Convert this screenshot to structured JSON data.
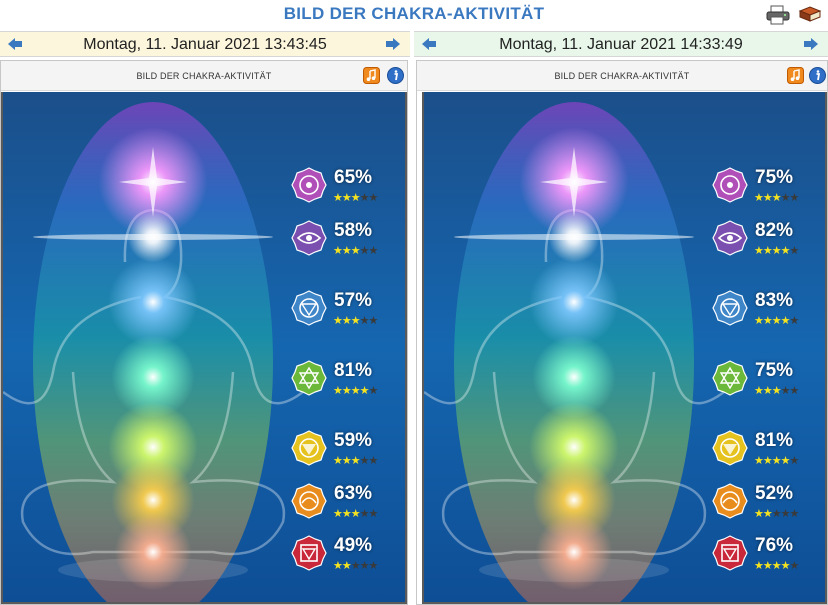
{
  "page": {
    "title": "BILD DER CHAKRA-AKTIVITÄT"
  },
  "icons": {
    "print": "printer-icon",
    "book": "book-icon",
    "prev": "arrow-left-icon",
    "next": "arrow-right-icon",
    "music": "music-note-icon",
    "info": "info-icon"
  },
  "colors": {
    "title": "#3a78c0",
    "left_date_bg": "#fbf6dc",
    "right_date_bg": "#e8f7ea",
    "star_on": "#f5e320",
    "star_off": "#3a3a3a"
  },
  "panels": [
    {
      "date": "Montag, 11. Januar 2021 13:43:45",
      "header": "BILD DER CHAKRA-AKTIVITÄT",
      "chakras": [
        {
          "name": "crown",
          "percent": "65%",
          "stars": 3,
          "color": "#b04fb8"
        },
        {
          "name": "third-eye",
          "percent": "58%",
          "stars": 3,
          "color": "#7a4fb0"
        },
        {
          "name": "throat",
          "percent": "57%",
          "stars": 3,
          "color": "#3f86c9"
        },
        {
          "name": "heart",
          "percent": "81%",
          "stars": 4,
          "color": "#6cb83a"
        },
        {
          "name": "solar-plexus",
          "percent": "59%",
          "stars": 3,
          "color": "#e6c21e"
        },
        {
          "name": "sacral",
          "percent": "63%",
          "stars": 3,
          "color": "#e88c1e"
        },
        {
          "name": "root",
          "percent": "49%",
          "stars": 2,
          "color": "#c8283a"
        }
      ]
    },
    {
      "date": "Montag, 11. Januar 2021 14:33:49",
      "header": "BILD DER CHAKRA-AKTIVITÄT",
      "chakras": [
        {
          "name": "crown",
          "percent": "75%",
          "stars": 3,
          "color": "#b04fb8"
        },
        {
          "name": "third-eye",
          "percent": "82%",
          "stars": 4,
          "color": "#7a4fb0"
        },
        {
          "name": "throat",
          "percent": "83%",
          "stars": 4,
          "color": "#3f86c9"
        },
        {
          "name": "heart",
          "percent": "75%",
          "stars": 3,
          "color": "#6cb83a"
        },
        {
          "name": "solar-plexus",
          "percent": "81%",
          "stars": 4,
          "color": "#e6c21e"
        },
        {
          "name": "sacral",
          "percent": "52%",
          "stars": 2,
          "color": "#e88c1e"
        },
        {
          "name": "root",
          "percent": "76%",
          "stars": 4,
          "color": "#c8283a"
        }
      ]
    }
  ]
}
